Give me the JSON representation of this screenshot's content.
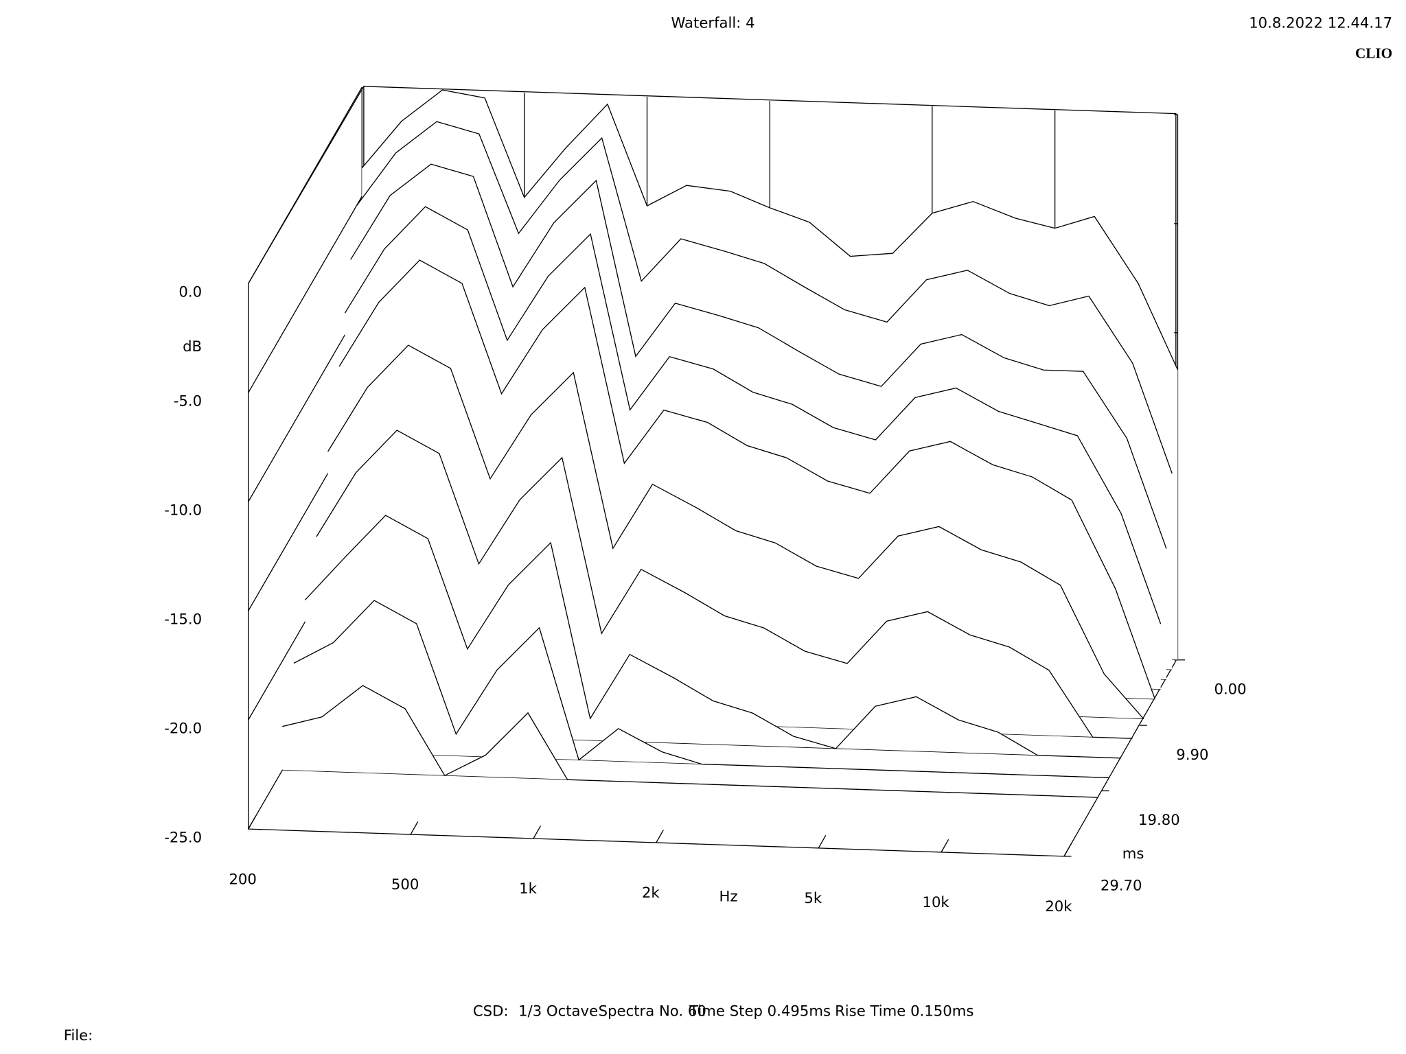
{
  "chart_data": {
    "type": "waterfall",
    "title": "Waterfall: 4",
    "timestamp": "10.8.2022 12.44.17",
    "brand": "CLIO",
    "ylabel": "dB",
    "xlabel": "Hz",
    "zlabel": "ms",
    "footer": {
      "mode": "CSD:",
      "smoothing": "1/3 Octave",
      "spectra": "Spectra No. 60",
      "time_step": "Time Step 0.495ms",
      "rise_time": "Rise Time 0.150ms"
    },
    "file_label": "File:",
    "xscale": "log",
    "color": "#000000",
    "xlim": [
      200,
      20000
    ],
    "xticks": [
      200,
      500,
      {
        "value": 1000,
        "label": "1k"
      },
      {
        "value": 2000,
        "label": "2k"
      },
      {
        "value": 5000,
        "label": "5k"
      },
      {
        "value": 10000,
        "label": "10k"
      },
      {
        "value": 20000,
        "label": "20k"
      }
    ],
    "ylim": [
      -25,
      0
    ],
    "yticks": [
      {
        "value": 0,
        "label": "0.0"
      },
      {
        "value": -5,
        "label": "-5.0"
      },
      {
        "value": -10,
        "label": "-10.0"
      },
      {
        "value": -15,
        "label": "-15.0"
      },
      {
        "value": -20,
        "label": "-20.0"
      },
      {
        "value": -25,
        "label": "-25.0"
      }
    ],
    "zlim": [
      0,
      29.7
    ],
    "zticks": [
      {
        "value": 0,
        "label": "0.00"
      },
      {
        "value": 9.9,
        "label": "9.90"
      },
      {
        "value": 19.8,
        "label": "19.80"
      },
      {
        "value": 29.7,
        "label": "29.70"
      }
    ],
    "x": [
      200,
      250,
      315,
      400,
      500,
      630,
      800,
      1000,
      1250,
      1600,
      2000,
      2500,
      3150,
      4000,
      5000,
      6300,
      8000,
      10000,
      12500,
      16000,
      20000
    ],
    "series": [
      {
        "time": 0,
        "values": [
          -3.7,
          -1.5,
          0,
          -0.3,
          -4.8,
          -2.5,
          -0.4,
          -5,
          -4,
          -4.2,
          -4.9,
          -5.5,
          -7,
          -6.8,
          -4.9,
          -4.3,
          -5,
          -5.4,
          -4.8,
          -7.8,
          -11.7
        ]
      },
      {
        "time": 1.485,
        "values": [
          -5,
          -2.5,
          -1,
          -1.5,
          -6,
          -3.5,
          -1.5,
          -8,
          -6,
          -6.5,
          -7,
          -8,
          -9,
          -9.5,
          -7.5,
          -7,
          -8,
          -8.5,
          -8,
          -11,
          -16
        ]
      },
      {
        "time": 2.97,
        "values": [
          -7,
          -4,
          -2.5,
          -3,
          -8,
          -5,
          -3,
          -11,
          -8.5,
          -9,
          -9.5,
          -10.5,
          -11.5,
          -12,
          -10,
          -9.5,
          -10.5,
          -11,
          -11,
          -14,
          -19
        ]
      },
      {
        "time": 4.455,
        "values": [
          -9,
          -6,
          -4,
          -5,
          -10,
          -7,
          -5,
          -13,
          -10.5,
          -11,
          -12,
          -12.5,
          -13.5,
          -14,
          -12,
          -11.5,
          -12.5,
          -13,
          -13.5,
          -17,
          -22
        ]
      },
      {
        "time": 5.94,
        "values": [
          -11,
          -8,
          -6,
          -7,
          -12,
          -9,
          -7,
          -15,
          -12.5,
          -13,
          -14,
          -14.5,
          -15.5,
          -16,
          -14,
          -13.5,
          -14.5,
          -15,
          -16,
          -20,
          -25
        ]
      },
      {
        "time": 8.91,
        "values": [
          -14,
          -11,
          -9,
          -10,
          -15,
          -12,
          -10,
          -18,
          -15,
          -16,
          -17,
          -17.5,
          -18.5,
          -19,
          -17,
          -16.5,
          -17.5,
          -18,
          -19,
          -23,
          -25
        ]
      },
      {
        "time": 11.88,
        "values": [
          -17,
          -14,
          -12,
          -13,
          -18,
          -15,
          -13,
          -21,
          -18,
          -19,
          -20,
          -20.5,
          -21.5,
          -22,
          -20,
          -19.5,
          -20.5,
          -21,
          -22,
          -25,
          -25
        ]
      },
      {
        "time": 14.85,
        "values": [
          -19,
          -17,
          -15,
          -16,
          -21,
          -18,
          -16,
          -24,
          -21,
          -22,
          -23,
          -23.5,
          -24.5,
          -25,
          -23,
          -22.5,
          -23.5,
          -24,
          -25,
          -25,
          -25
        ]
      },
      {
        "time": 17.82,
        "values": [
          -21,
          -20,
          -18,
          -19,
          -24,
          -21,
          -19,
          -25,
          -23.5,
          -24.5,
          -25,
          -25,
          -25,
          -25,
          -25,
          -25,
          -25,
          -25,
          -25,
          -25,
          -25
        ]
      },
      {
        "time": 20.79,
        "values": [
          -23,
          -22.5,
          -21,
          -22,
          -25,
          -24,
          -22,
          -25,
          -25,
          -25,
          -25,
          -25,
          -25,
          -25,
          -25,
          -25,
          -25,
          -25,
          -25,
          -25,
          -25
        ]
      }
    ]
  }
}
